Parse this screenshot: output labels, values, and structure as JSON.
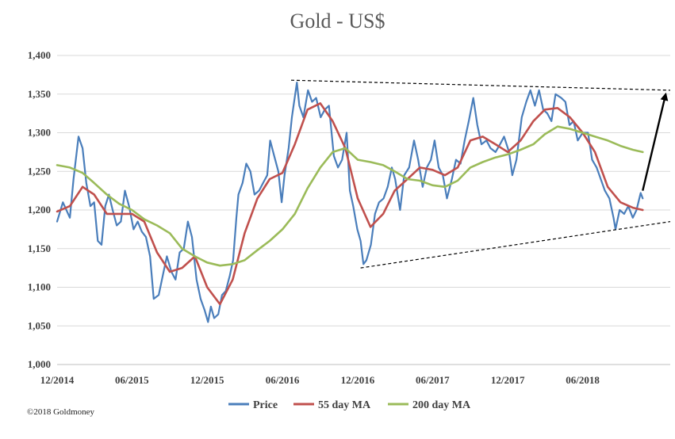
{
  "chart_data": {
    "type": "line",
    "title": "Gold - US$",
    "ylim": [
      1000,
      1400
    ],
    "yticks": [
      "1,000",
      "1,050",
      "1,100",
      "1,150",
      "1,200",
      "1,250",
      "1,300",
      "1,350",
      "1,400"
    ],
    "xlim": [
      "2014-12-01",
      "2018-12-31"
    ],
    "xticks": [
      {
        "date": "2014-12-01",
        "label": "12/2014"
      },
      {
        "date": "2015-06-01",
        "label": "06/2015"
      },
      {
        "date": "2015-12-01",
        "label": "12/2015"
      },
      {
        "date": "2016-06-01",
        "label": "06/2016"
      },
      {
        "date": "2016-12-01",
        "label": "12/2016"
      },
      {
        "date": "2017-06-01",
        "label": "06/2017"
      },
      {
        "date": "2017-12-01",
        "label": "12/2017"
      },
      {
        "date": "2018-06-01",
        "label": "06/2018"
      }
    ],
    "grid": "horizontal",
    "legend": "bottom",
    "series": [
      {
        "name": "Price",
        "color": "#4a7ebb",
        "points": [
          [
            "2014-12-01",
            1185
          ],
          [
            "2014-12-15",
            1210
          ],
          [
            "2015-01-01",
            1190
          ],
          [
            "2015-01-10",
            1240
          ],
          [
            "2015-01-22",
            1295
          ],
          [
            "2015-02-01",
            1280
          ],
          [
            "2015-02-10",
            1235
          ],
          [
            "2015-02-20",
            1205
          ],
          [
            "2015-03-01",
            1210
          ],
          [
            "2015-03-10",
            1160
          ],
          [
            "2015-03-19",
            1155
          ],
          [
            "2015-03-28",
            1205
          ],
          [
            "2015-04-06",
            1220
          ],
          [
            "2015-04-15",
            1200
          ],
          [
            "2015-04-25",
            1180
          ],
          [
            "2015-05-05",
            1185
          ],
          [
            "2015-05-15",
            1225
          ],
          [
            "2015-05-25",
            1205
          ],
          [
            "2015-06-05",
            1175
          ],
          [
            "2015-06-15",
            1185
          ],
          [
            "2015-06-25",
            1172
          ],
          [
            "2015-07-05",
            1165
          ],
          [
            "2015-07-15",
            1140
          ],
          [
            "2015-07-24",
            1085
          ],
          [
            "2015-08-05",
            1090
          ],
          [
            "2015-08-15",
            1115
          ],
          [
            "2015-08-25",
            1140
          ],
          [
            "2015-09-05",
            1120
          ],
          [
            "2015-09-15",
            1110
          ],
          [
            "2015-09-25",
            1145
          ],
          [
            "2015-10-05",
            1150
          ],
          [
            "2015-10-15",
            1185
          ],
          [
            "2015-10-25",
            1165
          ],
          [
            "2015-11-05",
            1110
          ],
          [
            "2015-11-15",
            1085
          ],
          [
            "2015-11-25",
            1070
          ],
          [
            "2015-12-03",
            1055
          ],
          [
            "2015-12-10",
            1075
          ],
          [
            "2015-12-18",
            1060
          ],
          [
            "2015-12-28",
            1065
          ],
          [
            "2016-01-06",
            1090
          ],
          [
            "2016-01-15",
            1095
          ],
          [
            "2016-01-25",
            1115
          ],
          [
            "2016-02-02",
            1135
          ],
          [
            "2016-02-10",
            1190
          ],
          [
            "2016-02-15",
            1220
          ],
          [
            "2016-02-25",
            1235
          ],
          [
            "2016-03-05",
            1260
          ],
          [
            "2016-03-15",
            1250
          ],
          [
            "2016-03-25",
            1220
          ],
          [
            "2016-04-05",
            1225
          ],
          [
            "2016-04-15",
            1235
          ],
          [
            "2016-04-25",
            1245
          ],
          [
            "2016-05-02",
            1290
          ],
          [
            "2016-05-12",
            1270
          ],
          [
            "2016-05-22",
            1250
          ],
          [
            "2016-05-30",
            1210
          ],
          [
            "2016-06-06",
            1245
          ],
          [
            "2016-06-16",
            1280
          ],
          [
            "2016-06-24",
            1320
          ],
          [
            "2016-07-06",
            1365
          ],
          [
            "2016-07-12",
            1335
          ],
          [
            "2016-07-22",
            1320
          ],
          [
            "2016-08-02",
            1355
          ],
          [
            "2016-08-12",
            1340
          ],
          [
            "2016-08-22",
            1345
          ],
          [
            "2016-09-02",
            1320
          ],
          [
            "2016-09-12",
            1330
          ],
          [
            "2016-09-22",
            1335
          ],
          [
            "2016-10-04",
            1270
          ],
          [
            "2016-10-14",
            1255
          ],
          [
            "2016-10-24",
            1265
          ],
          [
            "2016-11-04",
            1300
          ],
          [
            "2016-11-12",
            1225
          ],
          [
            "2016-11-20",
            1205
          ],
          [
            "2016-11-30",
            1175
          ],
          [
            "2016-12-08",
            1160
          ],
          [
            "2016-12-15",
            1130
          ],
          [
            "2016-12-22",
            1135
          ],
          [
            "2017-01-02",
            1155
          ],
          [
            "2017-01-12",
            1195
          ],
          [
            "2017-01-22",
            1210
          ],
          [
            "2017-02-02",
            1215
          ],
          [
            "2017-02-12",
            1230
          ],
          [
            "2017-02-22",
            1255
          ],
          [
            "2017-03-02",
            1240
          ],
          [
            "2017-03-14",
            1200
          ],
          [
            "2017-03-24",
            1245
          ],
          [
            "2017-04-05",
            1255
          ],
          [
            "2017-04-17",
            1290
          ],
          [
            "2017-04-27",
            1265
          ],
          [
            "2017-05-08",
            1230
          ],
          [
            "2017-05-18",
            1255
          ],
          [
            "2017-05-28",
            1265
          ],
          [
            "2017-06-06",
            1290
          ],
          [
            "2017-06-16",
            1255
          ],
          [
            "2017-06-26",
            1245
          ],
          [
            "2017-07-06",
            1215
          ],
          [
            "2017-07-18",
            1240
          ],
          [
            "2017-07-28",
            1265
          ],
          [
            "2017-08-08",
            1260
          ],
          [
            "2017-08-18",
            1290
          ],
          [
            "2017-08-28",
            1315
          ],
          [
            "2017-09-08",
            1345
          ],
          [
            "2017-09-18",
            1310
          ],
          [
            "2017-09-28",
            1285
          ],
          [
            "2017-10-10",
            1290
          ],
          [
            "2017-10-20",
            1280
          ],
          [
            "2017-11-01",
            1275
          ],
          [
            "2017-11-12",
            1285
          ],
          [
            "2017-11-22",
            1295
          ],
          [
            "2017-12-04",
            1275
          ],
          [
            "2017-12-12",
            1245
          ],
          [
            "2017-12-22",
            1265
          ],
          [
            "2018-01-04",
            1320
          ],
          [
            "2018-01-15",
            1340
          ],
          [
            "2018-01-25",
            1355
          ],
          [
            "2018-02-05",
            1335
          ],
          [
            "2018-02-15",
            1355
          ],
          [
            "2018-02-25",
            1330
          ],
          [
            "2018-03-07",
            1325
          ],
          [
            "2018-03-17",
            1315
          ],
          [
            "2018-03-27",
            1350
          ],
          [
            "2018-04-10",
            1345
          ],
          [
            "2018-04-20",
            1340
          ],
          [
            "2018-04-30",
            1310
          ],
          [
            "2018-05-10",
            1315
          ],
          [
            "2018-05-20",
            1290
          ],
          [
            "2018-06-01",
            1300
          ],
          [
            "2018-06-14",
            1300
          ],
          [
            "2018-06-24",
            1265
          ],
          [
            "2018-07-05",
            1255
          ],
          [
            "2018-07-15",
            1240
          ],
          [
            "2018-07-25",
            1225
          ],
          [
            "2018-08-05",
            1215
          ],
          [
            "2018-08-15",
            1190
          ],
          [
            "2018-08-20",
            1175
          ],
          [
            "2018-08-30",
            1200
          ],
          [
            "2018-09-10",
            1195
          ],
          [
            "2018-09-20",
            1205
          ],
          [
            "2018-10-01",
            1190
          ],
          [
            "2018-10-10",
            1200
          ],
          [
            "2018-10-20",
            1222
          ],
          [
            "2018-10-25",
            1215
          ]
        ]
      },
      {
        "name": "55 day MA",
        "color": "#c0504d",
        "points": [
          [
            "2014-12-01",
            1198
          ],
          [
            "2015-01-01",
            1205
          ],
          [
            "2015-02-01",
            1230
          ],
          [
            "2015-03-01",
            1220
          ],
          [
            "2015-04-01",
            1195
          ],
          [
            "2015-05-01",
            1195
          ],
          [
            "2015-06-01",
            1195
          ],
          [
            "2015-07-01",
            1185
          ],
          [
            "2015-08-01",
            1145
          ],
          [
            "2015-09-01",
            1120
          ],
          [
            "2015-10-01",
            1125
          ],
          [
            "2015-11-01",
            1140
          ],
          [
            "2015-12-01",
            1100
          ],
          [
            "2016-01-01",
            1078
          ],
          [
            "2016-02-01",
            1110
          ],
          [
            "2016-03-01",
            1170
          ],
          [
            "2016-04-01",
            1215
          ],
          [
            "2016-05-01",
            1240
          ],
          [
            "2016-06-01",
            1248
          ],
          [
            "2016-07-01",
            1285
          ],
          [
            "2016-08-01",
            1330
          ],
          [
            "2016-09-01",
            1338
          ],
          [
            "2016-10-01",
            1315
          ],
          [
            "2016-11-01",
            1280
          ],
          [
            "2016-12-01",
            1215
          ],
          [
            "2017-01-01",
            1178
          ],
          [
            "2017-02-01",
            1195
          ],
          [
            "2017-03-01",
            1225
          ],
          [
            "2017-04-01",
            1240
          ],
          [
            "2017-05-01",
            1255
          ],
          [
            "2017-06-01",
            1252
          ],
          [
            "2017-07-01",
            1245
          ],
          [
            "2017-08-01",
            1255
          ],
          [
            "2017-09-01",
            1290
          ],
          [
            "2017-10-01",
            1295
          ],
          [
            "2017-11-01",
            1285
          ],
          [
            "2017-12-01",
            1275
          ],
          [
            "2018-01-01",
            1290
          ],
          [
            "2018-02-01",
            1315
          ],
          [
            "2018-03-01",
            1330
          ],
          [
            "2018-04-01",
            1332
          ],
          [
            "2018-05-01",
            1320
          ],
          [
            "2018-06-01",
            1300
          ],
          [
            "2018-07-01",
            1275
          ],
          [
            "2018-08-01",
            1230
          ],
          [
            "2018-09-01",
            1210
          ],
          [
            "2018-10-01",
            1203
          ],
          [
            "2018-10-25",
            1200
          ]
        ]
      },
      {
        "name": "200 day MA",
        "color": "#9bbb59",
        "points": [
          [
            "2014-12-01",
            1258
          ],
          [
            "2015-01-01",
            1255
          ],
          [
            "2015-02-01",
            1248
          ],
          [
            "2015-03-01",
            1235
          ],
          [
            "2015-04-01",
            1220
          ],
          [
            "2015-05-01",
            1208
          ],
          [
            "2015-06-01",
            1200
          ],
          [
            "2015-07-01",
            1188
          ],
          [
            "2015-08-01",
            1180
          ],
          [
            "2015-09-01",
            1170
          ],
          [
            "2015-10-01",
            1150
          ],
          [
            "2015-11-01",
            1140
          ],
          [
            "2015-12-01",
            1132
          ],
          [
            "2016-01-01",
            1128
          ],
          [
            "2016-02-01",
            1130
          ],
          [
            "2016-03-01",
            1135
          ],
          [
            "2016-04-01",
            1148
          ],
          [
            "2016-05-01",
            1160
          ],
          [
            "2016-06-01",
            1175
          ],
          [
            "2016-07-01",
            1195
          ],
          [
            "2016-08-01",
            1228
          ],
          [
            "2016-09-01",
            1255
          ],
          [
            "2016-10-01",
            1275
          ],
          [
            "2016-11-01",
            1280
          ],
          [
            "2016-12-01",
            1265
          ],
          [
            "2017-01-01",
            1262
          ],
          [
            "2017-02-01",
            1258
          ],
          [
            "2017-03-01",
            1250
          ],
          [
            "2017-04-01",
            1240
          ],
          [
            "2017-05-01",
            1238
          ],
          [
            "2017-06-01",
            1232
          ],
          [
            "2017-07-01",
            1230
          ],
          [
            "2017-08-01",
            1238
          ],
          [
            "2017-09-01",
            1255
          ],
          [
            "2017-10-01",
            1262
          ],
          [
            "2017-11-01",
            1268
          ],
          [
            "2017-12-01",
            1272
          ],
          [
            "2018-01-01",
            1278
          ],
          [
            "2018-02-01",
            1285
          ],
          [
            "2018-03-01",
            1298
          ],
          [
            "2018-04-01",
            1308
          ],
          [
            "2018-05-01",
            1305
          ],
          [
            "2018-06-01",
            1300
          ],
          [
            "2018-07-01",
            1295
          ],
          [
            "2018-08-01",
            1290
          ],
          [
            "2018-09-01",
            1283
          ],
          [
            "2018-10-01",
            1278
          ],
          [
            "2018-10-25",
            1275
          ]
        ]
      }
    ],
    "annotations": [
      {
        "type": "dashed-line",
        "from": [
          "2016-06-22",
          1368
        ],
        "to": [
          "2018-12-31",
          1355
        ]
      },
      {
        "type": "dashed-line",
        "from": [
          "2016-12-08",
          1125
        ],
        "to": [
          "2018-12-31",
          1185
        ]
      },
      {
        "type": "arrow",
        "from": [
          "2018-10-25",
          1225
        ],
        "to": [
          "2018-12-20",
          1350
        ]
      }
    ]
  },
  "legend": {
    "items": [
      {
        "label": "Price",
        "color": "#4a7ebb"
      },
      {
        "label": "55 day MA",
        "color": "#c0504d"
      },
      {
        "label": "200 day MA",
        "color": "#9bbb59"
      }
    ]
  },
  "footer": {
    "copyright": "©2018 Goldmoney"
  }
}
